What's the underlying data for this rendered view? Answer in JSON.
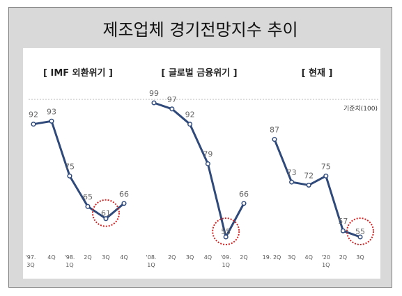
{
  "title": "제조업체 경기전망지수 추이",
  "baseline_label": "기준치(100)",
  "colors": {
    "line": "#2f4a7a",
    "highlight": "#d22424",
    "baseline": "#bbbbbb"
  },
  "chart_data": [
    {
      "type": "line",
      "title": "[ IMF 외환위기 ]",
      "categories": [
        [
          "'97.",
          "3Q"
        ],
        [
          "4Q"
        ],
        [
          "'98.",
          "1Q"
        ],
        [
          "2Q"
        ],
        [
          "3Q"
        ],
        [
          "4Q"
        ]
      ],
      "values": [
        92,
        93,
        75,
        65,
        61,
        66
      ],
      "highlight_index": 4
    },
    {
      "type": "line",
      "title": "[ 글로벌 금융위기 ]",
      "categories": [
        [
          "'08.",
          "1Q"
        ],
        [
          "2Q"
        ],
        [
          "3Q"
        ],
        [
          "4Q"
        ],
        [
          "'09.",
          "1Q"
        ],
        [
          "2Q"
        ]
      ],
      "values": [
        99,
        97,
        92,
        79,
        55,
        66
      ],
      "highlight_index": 4
    },
    {
      "type": "line",
      "title": "[ 현재 ]",
      "categories": [
        [
          "19. 2Q"
        ],
        [
          "3Q"
        ],
        [
          "4Q"
        ],
        [
          "'20",
          "1Q"
        ],
        [
          "2Q"
        ],
        [
          "3Q"
        ]
      ],
      "values": [
        87,
        73,
        72,
        75,
        57,
        55
      ],
      "highlight_index": 5
    }
  ]
}
